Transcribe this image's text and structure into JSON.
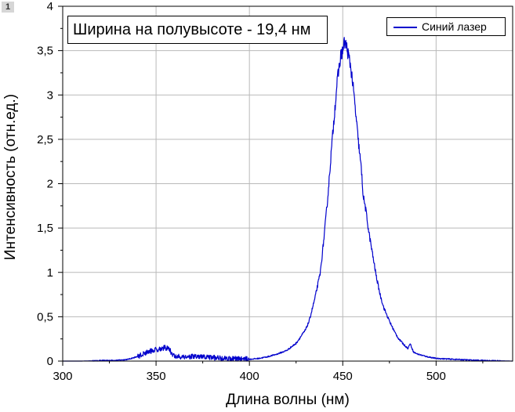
{
  "page_badge": "1",
  "chart_data": {
    "type": "line",
    "xlabel": "Длина волны (нм)",
    "ylabel": "Интенсивность (отн.ед.)",
    "annotation": "Ширина на полувысоте - 19,4 нм",
    "xlim": [
      300,
      541
    ],
    "ylim": [
      0,
      4
    ],
    "x_ticks": [
      300,
      350,
      400,
      450,
      500
    ],
    "x_tick_labels": [
      "300",
      "350",
      "400",
      "450",
      "500"
    ],
    "y_ticks": [
      0,
      0.5,
      1,
      1.5,
      2,
      2.5,
      3,
      3.5,
      4
    ],
    "y_tick_labels": [
      "0",
      "0,5",
      "1",
      "1,5",
      "2",
      "2,5",
      "3",
      "3,5",
      "4"
    ],
    "grid": true,
    "legend": {
      "position": "top-right",
      "entries": [
        "Синий лазер"
      ]
    },
    "series": [
      {
        "name": "Синий лазер",
        "color": "#0000cc",
        "x": [
          300,
          310,
          320,
          330,
          335,
          340,
          345,
          350,
          352,
          355,
          357,
          358,
          360,
          365,
          370,
          380,
          390,
          400,
          405,
          410,
          415,
          420,
          425,
          430,
          432,
          435,
          438,
          440,
          442,
          444,
          446,
          447,
          448,
          449,
          450,
          451,
          452,
          453,
          454,
          455,
          456,
          458,
          460,
          461,
          462,
          463,
          464,
          466,
          468,
          470,
          472,
          475,
          478,
          480,
          483,
          485,
          486,
          488,
          490,
          495,
          500,
          510,
          520,
          530,
          541
        ],
        "y": [
          0.0,
          0.0,
          0.005,
          0.01,
          0.02,
          0.05,
          0.1,
          0.13,
          0.14,
          0.15,
          0.14,
          0.1,
          0.05,
          0.05,
          0.05,
          0.04,
          0.03,
          0.02,
          0.03,
          0.05,
          0.08,
          0.12,
          0.2,
          0.35,
          0.45,
          0.7,
          1.0,
          1.4,
          1.85,
          2.4,
          2.9,
          3.15,
          3.3,
          3.45,
          3.5,
          3.6,
          3.55,
          3.45,
          3.35,
          3.2,
          3.0,
          2.55,
          2.15,
          1.85,
          1.75,
          1.6,
          1.45,
          1.2,
          0.95,
          0.75,
          0.6,
          0.45,
          0.32,
          0.25,
          0.18,
          0.14,
          0.2,
          0.1,
          0.08,
          0.05,
          0.03,
          0.02,
          0.01,
          0.005,
          0.0
        ]
      }
    ]
  }
}
